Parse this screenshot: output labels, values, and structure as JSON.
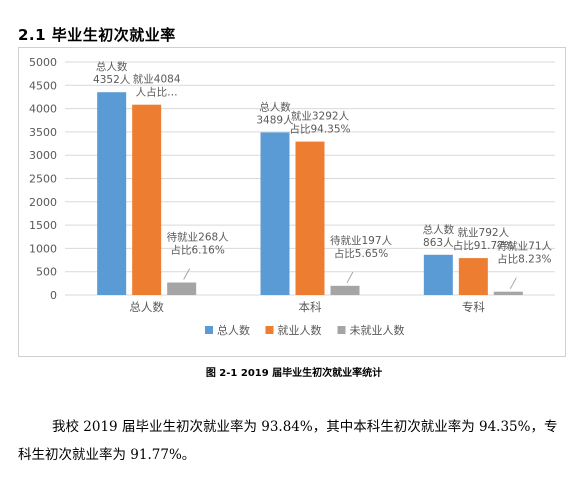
{
  "section": {
    "title": "2.1 毕业生初次就业率"
  },
  "figure": {
    "caption": "图 2-1   2019 届毕业生初次就业率统计"
  },
  "paragraph": {
    "text": "我校 2019 届毕业生初次就业率为 93.84%，其中本科生初次就业率为 94.35%，专科生初次就业率为 91.77%。"
  },
  "colors": {
    "total": "#5b9bd5",
    "employed": "#ed7d31",
    "unemployed": "#a5a5a5",
    "grid": "#d9d9d9",
    "axis_text": "#595959"
  },
  "chart_data": {
    "type": "bar",
    "categories": [
      "总人数",
      "本科",
      "专科"
    ],
    "series": [
      {
        "name": "总人数",
        "values": [
          4352,
          3489,
          863
        ]
      },
      {
        "name": "就业人数",
        "values": [
          4084,
          3292,
          792
        ]
      },
      {
        "name": "未就业人数",
        "values": [
          268,
          197,
          71
        ]
      }
    ],
    "ylim": [
      0,
      5000
    ],
    "yticks": [
      0,
      500,
      1000,
      1500,
      2000,
      2500,
      3000,
      3500,
      4000,
      4500,
      5000
    ],
    "grid": true,
    "legend_position": "bottom",
    "data_labels": [
      [
        "总人数\n4352人",
        "就业4084\n人占比…",
        "待就业268人\n占比6.16%"
      ],
      [
        "总人数\n3489人",
        "就业3292人\n占比94.35%",
        "待就业197人\n占比5.65%"
      ],
      [
        "总人数\n863人",
        "就业792人\n占比91.77%",
        "待就业71人\n占比8.23%"
      ]
    ]
  }
}
